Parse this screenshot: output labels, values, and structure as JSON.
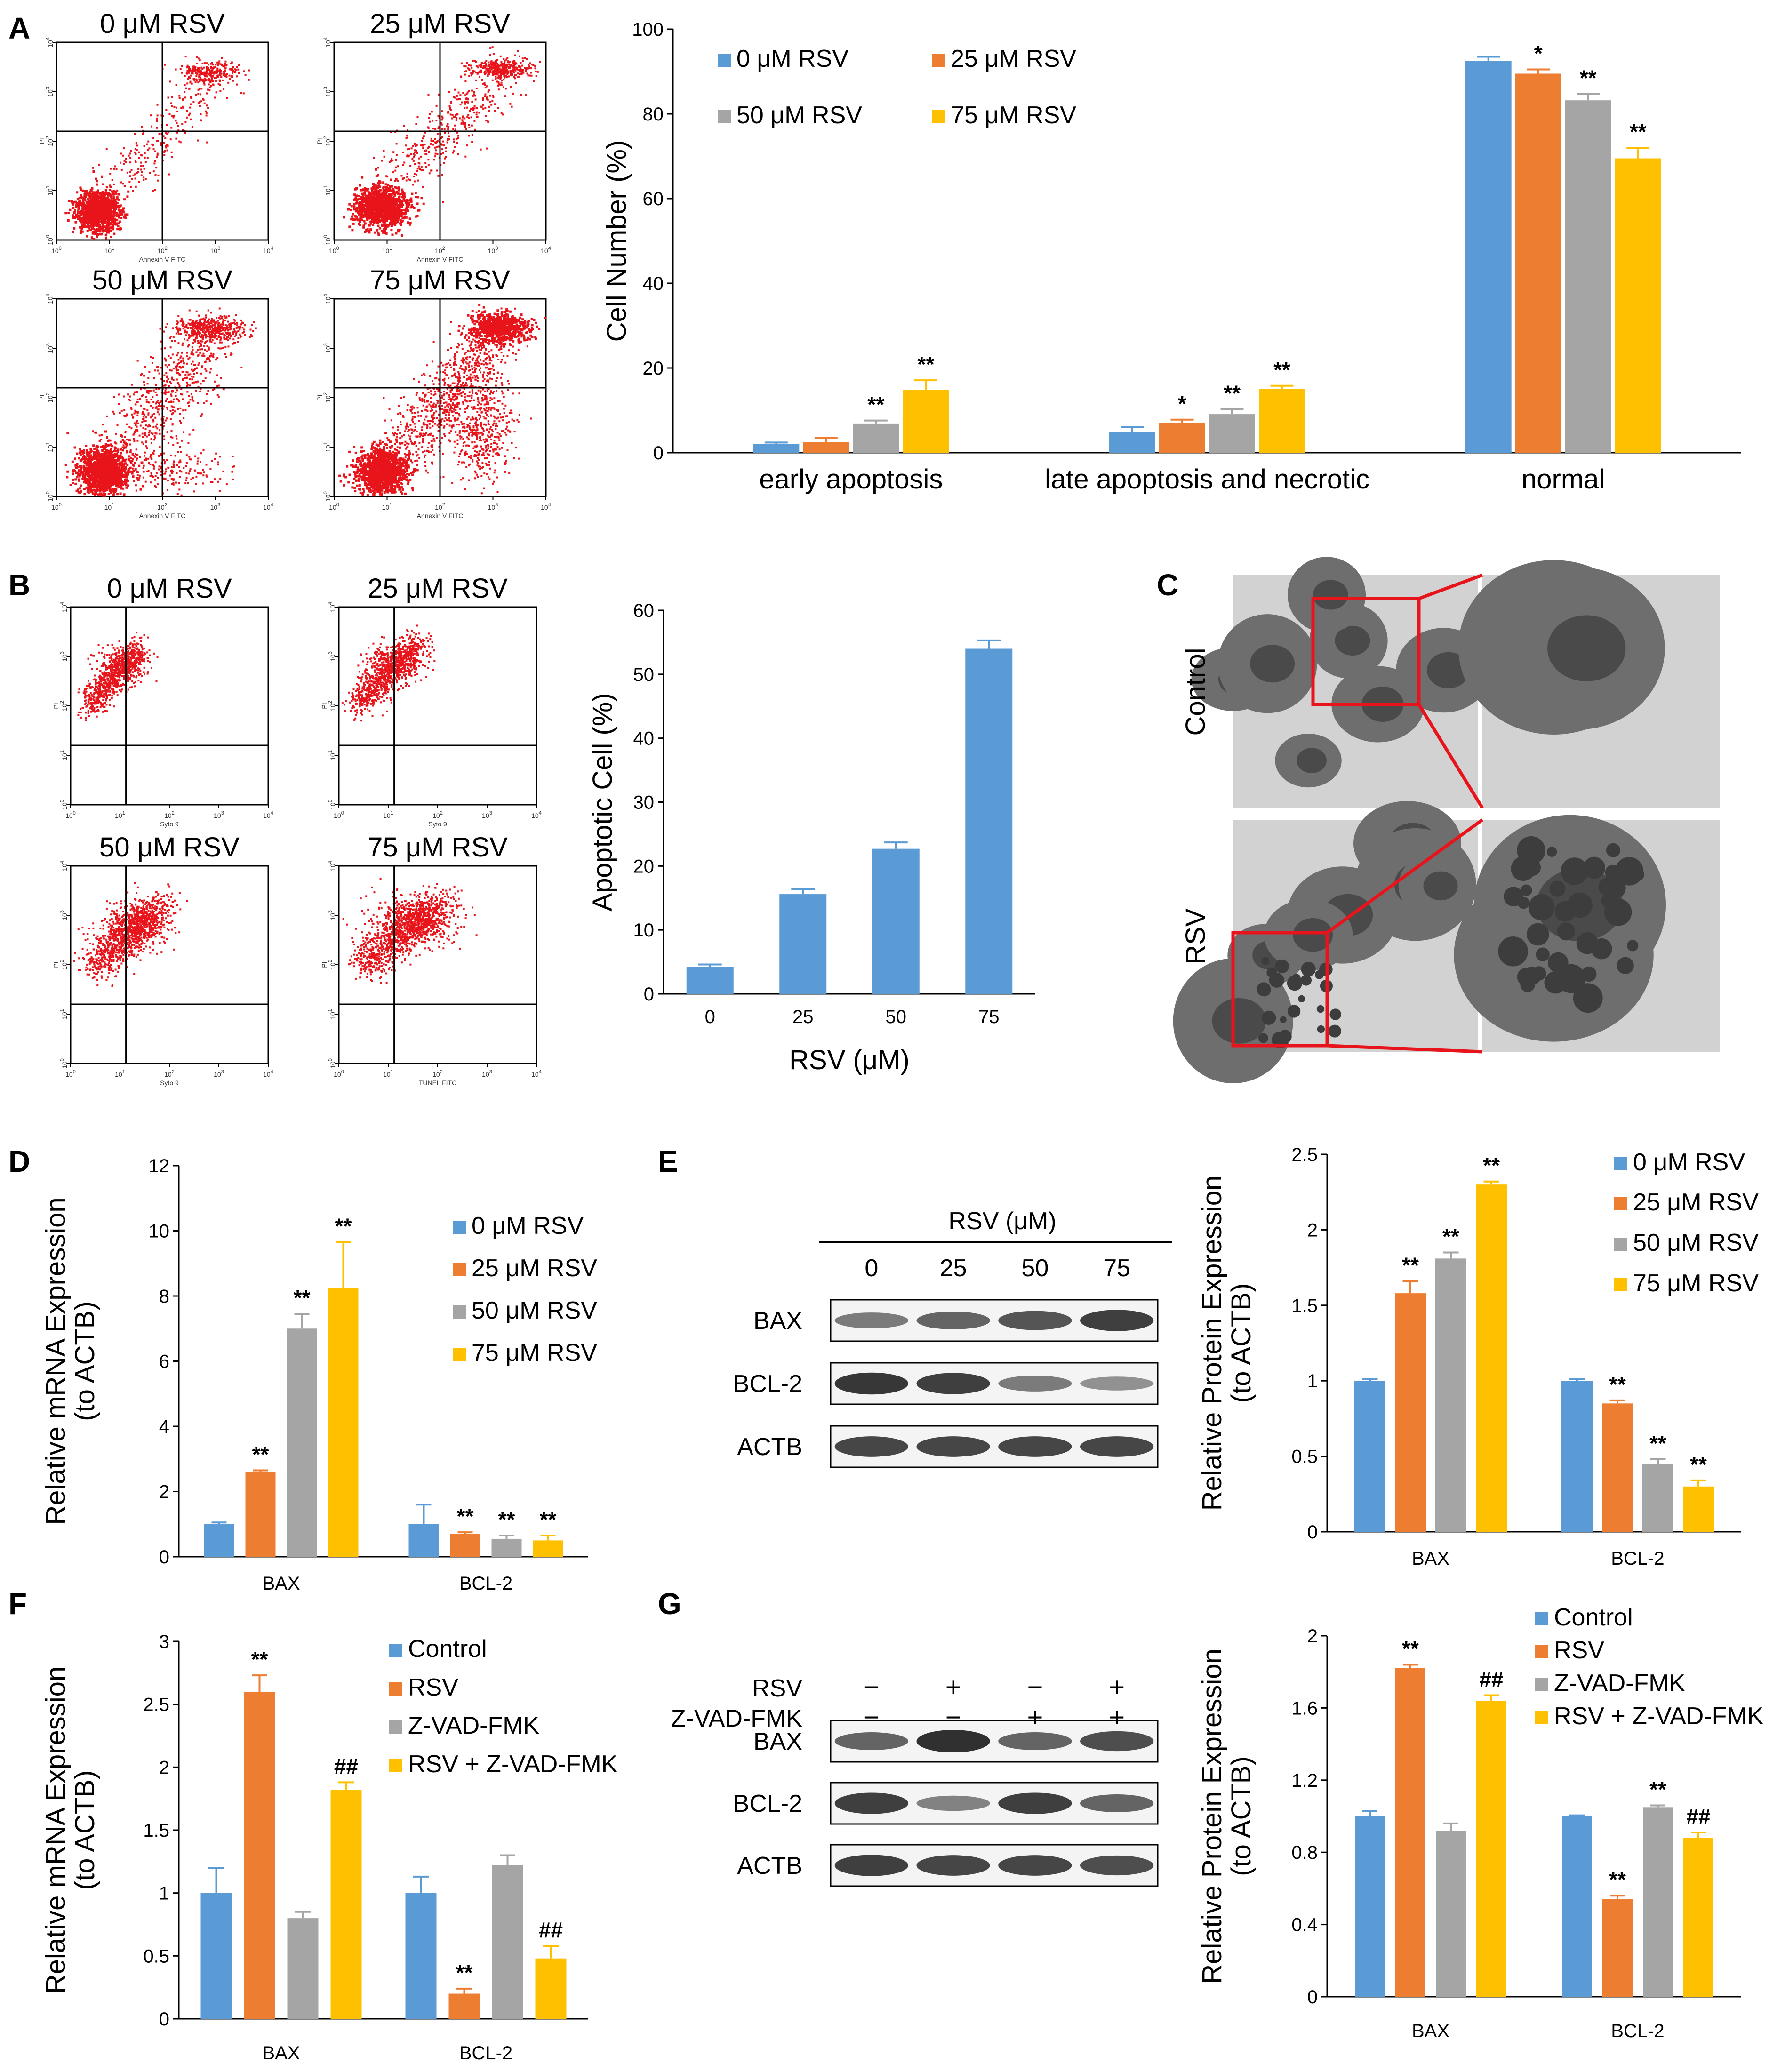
{
  "colors": {
    "c0": "#5b9bd5",
    "c1": "#ed7d31",
    "c2": "#a5a5a5",
    "c3": "#ffc000",
    "dots": "#e8141b",
    "tem_box": "#e8141b"
  },
  "panels": {
    "A": "A",
    "B": "B",
    "C": "C",
    "D": "D",
    "E": "E",
    "F": "F",
    "G": "G"
  },
  "flow": {
    "A_titles": [
      "0 μM RSV",
      "25 μM RSV",
      "50 μM RSV",
      "75 μM RSV"
    ],
    "B_titles": [
      "0 μM RSV",
      "25 μM RSV",
      "50 μM RSV",
      "75 μM RSV"
    ],
    "A_xaxis": "Annexin V FITC",
    "A_yaxis": "PI",
    "B_xaxis": [
      "Syto 9",
      "Syto 9",
      "Syto 9",
      "TUNEL FITC"
    ],
    "B_yaxis": "PI",
    "log_ticks": [
      "10",
      "10",
      "10",
      "10",
      "10"
    ],
    "log_exps": [
      "0",
      "1",
      "2",
      "3",
      "4"
    ]
  },
  "tem": {
    "row_labels": [
      "Control",
      "RSV"
    ]
  },
  "westerns": {
    "E": {
      "header": "RSV (μM)",
      "lanes": [
        "0",
        "25",
        "50",
        "75"
      ],
      "rows": [
        "BAX",
        "BCL-2",
        "ACTB"
      ],
      "intensity": [
        [
          0.45,
          0.6,
          0.7,
          0.85
        ],
        [
          0.9,
          0.85,
          0.45,
          0.3
        ],
        [
          0.8,
          0.8,
          0.8,
          0.8
        ]
      ]
    },
    "G": {
      "treat_rows": [
        {
          "label": "RSV",
          "signs": [
            "−",
            "+",
            "−",
            "+"
          ]
        },
        {
          "label": "Z-VAD-FMK",
          "signs": [
            "−",
            "−",
            "+",
            "+"
          ]
        }
      ],
      "rows": [
        "BAX",
        "BCL-2",
        "ACTB"
      ],
      "intensity": [
        [
          0.6,
          0.95,
          0.6,
          0.75
        ],
        [
          0.85,
          0.4,
          0.85,
          0.6
        ],
        [
          0.85,
          0.8,
          0.8,
          0.75
        ]
      ]
    }
  },
  "chart_data": [
    {
      "id": "A",
      "type": "bar",
      "categories": [
        "early apoptosis",
        "late apoptosis and necrotic",
        "normal"
      ],
      "series": [
        {
          "name": "0 μM RSV",
          "values": [
            2.0,
            4.8,
            92.5
          ],
          "errors": [
            0.4,
            1.2,
            1.0
          ]
        },
        {
          "name": "25 μM RSV",
          "values": [
            2.5,
            7.1,
            89.5
          ],
          "errors": [
            1.0,
            0.7,
            1.0
          ]
        },
        {
          "name": "50 μM RSV",
          "values": [
            6.9,
            9.1,
            83.2
          ],
          "errors": [
            0.7,
            1.2,
            1.5
          ]
        },
        {
          "name": "75 μM RSV",
          "values": [
            14.8,
            15.0,
            69.5
          ],
          "errors": [
            2.3,
            0.8,
            2.5
          ]
        }
      ],
      "significance": [
        [
          "",
          "",
          "**",
          "**"
        ],
        [
          "",
          "*",
          "**",
          "**"
        ],
        [
          "",
          "*",
          "**",
          "**"
        ]
      ],
      "ylabel": "Cell Number (%)",
      "ylim": [
        0,
        100
      ],
      "yticks": [
        "0",
        "20",
        "40",
        "60",
        "80",
        "100"
      ],
      "legend": "top"
    },
    {
      "id": "B",
      "type": "bar",
      "categories": [
        "0",
        "25",
        "50",
        "75"
      ],
      "series": [
        {
          "name": "",
          "values": [
            4.2,
            15.6,
            22.7,
            54.0
          ],
          "errors": [
            0.4,
            0.8,
            1.0,
            1.3
          ]
        }
      ],
      "significance": [
        [
          "",
          "**",
          "**",
          "**"
        ]
      ],
      "xlabel": "RSV (μM)",
      "ylabel": "Apoptotic Cell (%)",
      "ylim": [
        0,
        60
      ],
      "yticks": [
        "0",
        "10",
        "20",
        "30",
        "40",
        "50",
        "60"
      ]
    },
    {
      "id": "D",
      "type": "bar",
      "categories": [
        "BAX",
        "BCL-2"
      ],
      "series": [
        {
          "name": "0 μM RSV",
          "values": [
            1.0,
            1.0
          ],
          "errors": [
            0.05,
            0.6
          ]
        },
        {
          "name": "25 μM RSV",
          "values": [
            2.6,
            0.7
          ],
          "errors": [
            0.05,
            0.05
          ]
        },
        {
          "name": "50 μM RSV",
          "values": [
            7.0,
            0.55
          ],
          "errors": [
            0.45,
            0.1
          ]
        },
        {
          "name": "75 μM RSV",
          "values": [
            8.25,
            0.5
          ],
          "errors": [
            1.4,
            0.15
          ]
        }
      ],
      "significance": [
        [
          "",
          "**",
          "**",
          "**"
        ],
        [
          "",
          "**",
          "**",
          "**"
        ]
      ],
      "ylabel": "Relative mRNA Expression (to ACTB)",
      "ylabel_lines": [
        "Relative mRNA Expression",
        "(to ACTB)"
      ],
      "ylim": [
        0,
        12
      ],
      "yticks": [
        "0",
        "2",
        "4",
        "6",
        "8",
        "10",
        "12"
      ],
      "legend": "right"
    },
    {
      "id": "E",
      "type": "bar",
      "categories": [
        "BAX",
        "BCL-2"
      ],
      "series": [
        {
          "name": "0 μM RSV",
          "values": [
            1.0,
            1.0
          ],
          "errors": [
            0.01,
            0.01
          ]
        },
        {
          "name": "25 μM RSV",
          "values": [
            1.58,
            0.85
          ],
          "errors": [
            0.08,
            0.02
          ]
        },
        {
          "name": "50 μM RSV",
          "values": [
            1.81,
            0.45
          ],
          "errors": [
            0.04,
            0.03
          ]
        },
        {
          "name": "75 μM RSV",
          "values": [
            2.3,
            0.3
          ],
          "errors": [
            0.02,
            0.04
          ]
        }
      ],
      "significance": [
        [
          "",
          "**",
          "**",
          "**"
        ],
        [
          "",
          "**",
          "**",
          "**"
        ]
      ],
      "ylabel": "Relative Protein Expression (to ACTB)",
      "ylabel_lines": [
        "Relative Protein Expression",
        "(to ACTB)"
      ],
      "ylim": [
        0,
        2.5
      ],
      "yticks": [
        "0",
        "0.5",
        "1",
        "1.5",
        "2",
        "2.5"
      ],
      "legend": "right"
    },
    {
      "id": "F",
      "type": "bar",
      "categories": [
        "BAX",
        "BCL-2"
      ],
      "series": [
        {
          "name": "Control",
          "values": [
            1.0,
            1.0
          ],
          "errors": [
            0.2,
            0.13
          ]
        },
        {
          "name": "RSV",
          "values": [
            2.6,
            0.2
          ],
          "errors": [
            0.13,
            0.04
          ]
        },
        {
          "name": "Z-VAD-FMK",
          "values": [
            0.8,
            1.22
          ],
          "errors": [
            0.05,
            0.08
          ]
        },
        {
          "name": "RSV + Z-VAD-FMK",
          "values": [
            1.82,
            0.48
          ],
          "errors": [
            0.06,
            0.1
          ]
        }
      ],
      "significance": [
        [
          "",
          "**",
          "",
          "##"
        ],
        [
          "",
          "**",
          "",
          "##"
        ]
      ],
      "ylabel": "Relative mRNA Expression (to ACTB)",
      "ylabel_lines": [
        "Relative mRNA Expression",
        "(to ACTB)"
      ],
      "ylim": [
        0,
        3
      ],
      "yticks": [
        "0",
        "0.5",
        "1",
        "1.5",
        "2",
        "2.5",
        "3"
      ],
      "legend": "right"
    },
    {
      "id": "G",
      "type": "bar",
      "categories": [
        "BAX",
        "BCL-2"
      ],
      "series": [
        {
          "name": "Control",
          "values": [
            1.0,
            1.0
          ],
          "errors": [
            0.03,
            0.005
          ]
        },
        {
          "name": "RSV",
          "values": [
            1.82,
            0.54
          ],
          "errors": [
            0.02,
            0.02
          ]
        },
        {
          "name": "Z-VAD-FMK",
          "values": [
            0.92,
            1.05
          ],
          "errors": [
            0.04,
            0.01
          ]
        },
        {
          "name": "RSV + Z-VAD-FMK",
          "values": [
            1.64,
            0.88
          ],
          "errors": [
            0.03,
            0.03
          ]
        }
      ],
      "significance": [
        [
          "",
          "**",
          "",
          "##"
        ],
        [
          "",
          "**",
          "**",
          "##"
        ]
      ],
      "ylabel": "Relative Protein Expression (to ACTB)",
      "ylabel_lines": [
        "Relative Protein Expression",
        "(to ACTB)"
      ],
      "ylim": [
        0,
        2
      ],
      "yticks": [
        "0",
        "0.4",
        "0.8",
        "1.2",
        "1.6",
        "2"
      ],
      "legend": "right"
    }
  ]
}
